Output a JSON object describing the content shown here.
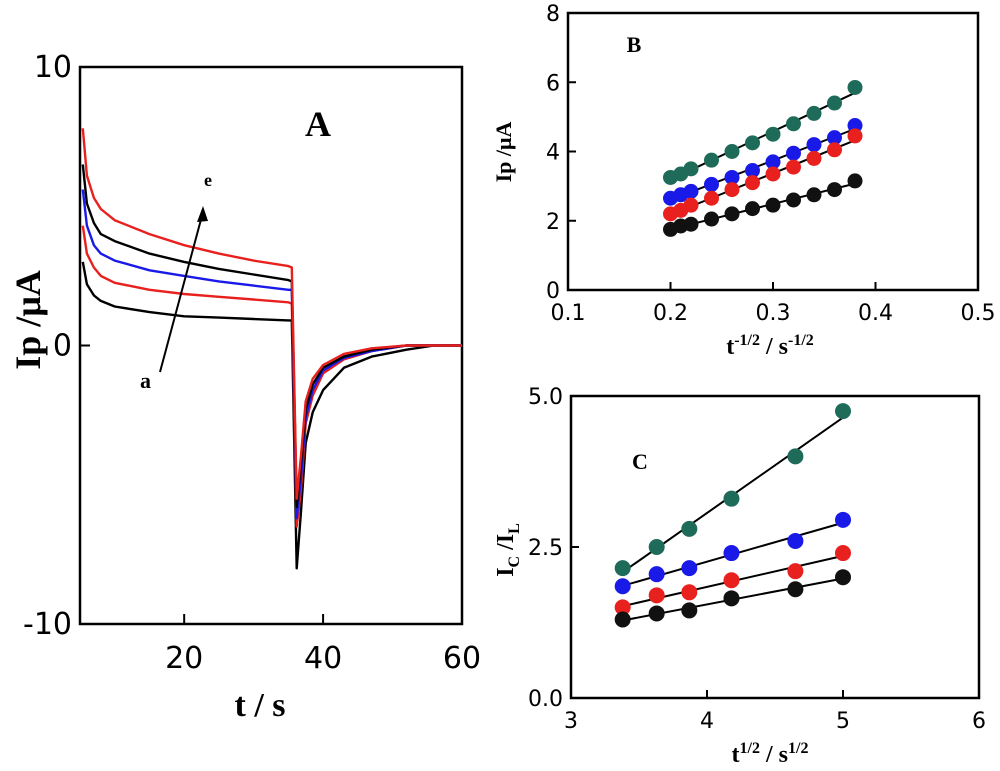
{
  "chart_data": [
    {
      "panel": "A",
      "type": "line",
      "panel_label": "A",
      "xlabel": "t / s",
      "ylabel": "Ip /μA",
      "xlim": [
        5,
        60
      ],
      "ylim": [
        -10,
        10
      ],
      "xticks": [
        20,
        40,
        60
      ],
      "yticks": [
        10,
        0,
        -10
      ],
      "grid": false,
      "annotation_start": "a",
      "annotation_end": "e",
      "series": [
        {
          "color": "#000000",
          "x": [
            5.4,
            6,
            7,
            8,
            10,
            15,
            20,
            25,
            30,
            35,
            35.5,
            36.2,
            36.8,
            37.5,
            38.5,
            40,
            43,
            47,
            52,
            56,
            60
          ],
          "y": [
            3,
            2.2,
            1.8,
            1.6,
            1.4,
            1.2,
            1.05,
            1,
            0.95,
            0.9,
            0.9,
            -8,
            -6,
            -3.5,
            -2.4,
            -1.6,
            -0.8,
            -0.4,
            -0.15,
            0,
            0
          ]
        },
        {
          "color": "#e8201e",
          "x": [
            5.4,
            6,
            7,
            8,
            10,
            15,
            20,
            25,
            30,
            35,
            35.5,
            36.2,
            36.8,
            37.5,
            38.5,
            40,
            43,
            47,
            52,
            56,
            60
          ],
          "y": [
            4.3,
            3.3,
            2.8,
            2.5,
            2.25,
            2,
            1.85,
            1.75,
            1.65,
            1.55,
            1.5,
            -6.5,
            -5.2,
            -2.8,
            -1.8,
            -1,
            -0.5,
            -0.2,
            0,
            0,
            0
          ]
        },
        {
          "color": "#1a1ae8",
          "x": [
            5.4,
            6,
            7,
            8,
            10,
            15,
            20,
            25,
            30,
            35,
            35.5,
            36.2,
            36.8,
            37.5,
            38.5,
            40,
            43,
            47,
            52,
            56,
            60
          ],
          "y": [
            5.6,
            4.3,
            3.6,
            3.3,
            3.05,
            2.7,
            2.5,
            2.3,
            2.15,
            2,
            2,
            -6.2,
            -4.8,
            -2.6,
            -1.6,
            -0.9,
            -0.45,
            -0.2,
            0,
            0,
            0
          ]
        },
        {
          "color": "#000000",
          "x": [
            5.4,
            6,
            7,
            8,
            10,
            15,
            20,
            25,
            30,
            35,
            35.5,
            36.2,
            36.8,
            37.5,
            38.5,
            40,
            43,
            47,
            52,
            56,
            60
          ],
          "y": [
            6.5,
            5.1,
            4.4,
            4,
            3.75,
            3.3,
            3,
            2.75,
            2.55,
            2.35,
            2.3,
            -5.8,
            -4.3,
            -2.3,
            -1.4,
            -0.8,
            -0.4,
            -0.15,
            0,
            0,
            0
          ]
        },
        {
          "color": "#e8201e",
          "x": [
            5.4,
            6,
            7,
            8,
            10,
            15,
            20,
            25,
            30,
            35,
            35.5,
            36.2,
            36.8,
            37.5,
            38.5,
            40,
            43,
            47,
            52,
            56,
            60
          ],
          "y": [
            7.8,
            6.1,
            5.3,
            4.9,
            4.5,
            4,
            3.6,
            3.3,
            3.05,
            2.85,
            2.8,
            -5.5,
            -4,
            -2,
            -1.2,
            -0.7,
            -0.3,
            -0.1,
            0,
            0,
            0
          ]
        }
      ]
    },
    {
      "panel": "B",
      "type": "scatter",
      "panel_label": "B",
      "xlabel_base": "t",
      "xlabel_exp1": "-1/2",
      "xlabel_mid": " / s",
      "xlabel_exp2": "-1/2",
      "ylabel": "Ip /μA",
      "xlim": [
        0.1,
        0.5
      ],
      "ylim": [
        0,
        8
      ],
      "xticks": [
        0.1,
        0.2,
        0.3,
        0.4,
        0.5
      ],
      "yticks": [
        0,
        2,
        4,
        6,
        8
      ],
      "grid": false,
      "x": [
        0.2,
        0.21,
        0.22,
        0.24,
        0.26,
        0.28,
        0.3,
        0.32,
        0.34,
        0.36,
        0.38
      ],
      "series": [
        {
          "color": "#1e6b5a",
          "values": [
            3.25,
            3.35,
            3.5,
            3.75,
            4.0,
            4.25,
            4.5,
            4.8,
            5.1,
            5.4,
            5.85
          ]
        },
        {
          "color": "#1a1ae8",
          "values": [
            2.65,
            2.75,
            2.85,
            3.05,
            3.25,
            3.45,
            3.7,
            3.95,
            4.2,
            4.4,
            4.75
          ]
        },
        {
          "color": "#e8201e",
          "values": [
            2.2,
            2.3,
            2.45,
            2.65,
            2.9,
            3.1,
            3.35,
            3.55,
            3.8,
            4.05,
            4.45
          ]
        },
        {
          "color": "#111111",
          "values": [
            1.75,
            1.85,
            1.9,
            2.05,
            2.2,
            2.35,
            2.45,
            2.6,
            2.75,
            2.9,
            3.15
          ]
        }
      ]
    },
    {
      "panel": "C",
      "type": "scatter",
      "panel_label": "C",
      "xlabel_base": "t",
      "xlabel_exp1": "1/2",
      "xlabel_mid": " / s",
      "xlabel_exp2": "1/2",
      "ylabel_base1": "I",
      "ylabel_sub1": "C",
      "ylabel_mid": " /I",
      "ylabel_sub2": "L",
      "xlim": [
        3,
        6
      ],
      "ylim": [
        0,
        5
      ],
      "xticks": [
        3,
        4,
        5,
        6
      ],
      "yticks": [
        0,
        2.5,
        5
      ],
      "ytick_labels": [
        "0.0",
        "2.5",
        "5.0"
      ],
      "grid": false,
      "x": [
        3.38,
        3.63,
        3.87,
        4.18,
        4.65,
        5.0
      ],
      "series": [
        {
          "color": "#1e6b5a",
          "values": [
            2.15,
            2.5,
            2.8,
            3.3,
            4.0,
            4.75
          ]
        },
        {
          "color": "#1a1ae8",
          "values": [
            1.85,
            2.05,
            2.15,
            2.4,
            2.6,
            2.95
          ]
        },
        {
          "color": "#e8201e",
          "values": [
            1.5,
            1.7,
            1.75,
            1.95,
            2.1,
            2.4
          ]
        },
        {
          "color": "#111111",
          "values": [
            1.3,
            1.4,
            1.45,
            1.65,
            1.8,
            2.0
          ]
        }
      ]
    }
  ]
}
